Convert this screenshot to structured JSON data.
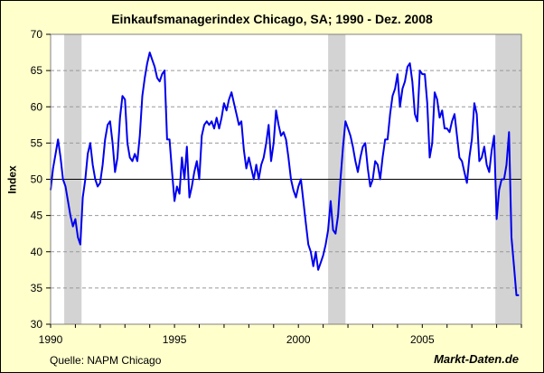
{
  "chart_data": {
    "type": "line",
    "title": "Einkaufsmanagerindex Chicago, SA; 1990 - Dez. 2008",
    "ylabel": "Index",
    "xlabel": "",
    "xlim": [
      1990,
      2009
    ],
    "ylim": [
      30,
      70
    ],
    "yticks": [
      30,
      35,
      40,
      45,
      50,
      55,
      60,
      65,
      70
    ],
    "xticks": [
      1990,
      1995,
      2000,
      2005
    ],
    "grid": true,
    "reference_line": 50,
    "recessions": [
      [
        1990.55,
        1991.25
      ],
      [
        2001.2,
        2001.9
      ],
      [
        2007.95,
        2009.0
      ]
    ],
    "colors": {
      "line": "#0000EE",
      "recession": "#D3D3D3",
      "plot_bg": "#FFFFFF",
      "grid": "#999999"
    },
    "series": [
      {
        "x": [
          1990.0,
          1990.1,
          1990.2,
          1990.3,
          1990.4,
          1990.5,
          1990.6,
          1990.7,
          1990.8,
          1990.9,
          1991.0,
          1991.1,
          1991.2,
          1991.3,
          1991.4,
          1991.5,
          1991.6,
          1991.7,
          1991.8,
          1991.9,
          1992.0,
          1992.1,
          1992.2,
          1992.3,
          1992.4,
          1992.5,
          1992.6,
          1992.7,
          1992.8,
          1992.9,
          1993.0,
          1993.1,
          1993.2,
          1993.3,
          1993.4,
          1993.5,
          1993.6,
          1993.7,
          1993.8,
          1993.9,
          1994.0,
          1994.1,
          1994.2,
          1994.3,
          1994.4,
          1994.5,
          1994.6,
          1994.7,
          1994.8,
          1994.9,
          1995.0,
          1995.1,
          1995.2,
          1995.3,
          1995.4,
          1995.5,
          1995.6,
          1995.7,
          1995.8,
          1995.9,
          1996.0,
          1996.1,
          1996.2,
          1996.3,
          1996.4,
          1996.5,
          1996.6,
          1996.7,
          1996.8,
          1996.9,
          1997.0,
          1997.1,
          1997.2,
          1997.3,
          1997.4,
          1997.5,
          1997.6,
          1997.7,
          1997.8,
          1997.9,
          1998.0,
          1998.1,
          1998.2,
          1998.3,
          1998.4,
          1998.5,
          1998.6,
          1998.7,
          1998.8,
          1998.9,
          1999.0,
          1999.1,
          1999.2,
          1999.3,
          1999.4,
          1999.5,
          1999.6,
          1999.7,
          1999.8,
          1999.9,
          2000.0,
          2000.1,
          2000.2,
          2000.3,
          2000.4,
          2000.5,
          2000.6,
          2000.7,
          2000.8,
          2000.9,
          2001.0,
          2001.1,
          2001.2,
          2001.3,
          2001.4,
          2001.5,
          2001.6,
          2001.7,
          2001.8,
          2001.9,
          2002.0,
          2002.1,
          2002.2,
          2002.3,
          2002.4,
          2002.5,
          2002.6,
          2002.7,
          2002.8,
          2002.9,
          2003.0,
          2003.1,
          2003.2,
          2003.3,
          2003.4,
          2003.5,
          2003.6,
          2003.7,
          2003.8,
          2003.9,
          2004.0,
          2004.1,
          2004.2,
          2004.3,
          2004.4,
          2004.5,
          2004.6,
          2004.7,
          2004.8,
          2004.9,
          2005.0,
          2005.1,
          2005.2,
          2005.3,
          2005.4,
          2005.5,
          2005.6,
          2005.7,
          2005.8,
          2005.9,
          2006.0,
          2006.1,
          2006.2,
          2006.3,
          2006.4,
          2006.5,
          2006.6,
          2006.7,
          2006.8,
          2006.9,
          2007.0,
          2007.1,
          2007.2,
          2007.3,
          2007.4,
          2007.5,
          2007.6,
          2007.7,
          2007.8,
          2007.9,
          2008.0,
          2008.1,
          2008.2,
          2008.3,
          2008.4,
          2008.5,
          2008.6,
          2008.7,
          2008.8,
          2008.9
        ],
        "values": [
          48.5,
          51.5,
          53.5,
          55.5,
          53.0,
          50.0,
          49.0,
          47.0,
          45.0,
          43.5,
          44.5,
          42.0,
          41.0,
          47.5,
          50.0,
          53.5,
          55.0,
          52.0,
          50.0,
          49.0,
          49.5,
          52.0,
          55.5,
          57.5,
          58.0,
          55.0,
          51.0,
          53.0,
          58.5,
          61.5,
          61.0,
          55.0,
          53.0,
          52.5,
          53.5,
          52.5,
          56.0,
          61.5,
          64.0,
          66.0,
          67.5,
          66.5,
          65.5,
          64.0,
          63.5,
          64.5,
          65.0,
          55.5,
          55.5,
          51.0,
          47.0,
          49.0,
          48.0,
          53.0,
          50.0,
          54.5,
          47.5,
          49.0,
          51.0,
          52.5,
          50.0,
          56.0,
          57.5,
          58.0,
          57.5,
          58.0,
          57.0,
          58.5,
          57.0,
          58.5,
          60.5,
          59.5,
          61.0,
          62.0,
          60.5,
          59.0,
          57.5,
          58.0,
          54.0,
          51.5,
          53.0,
          51.5,
          50.0,
          52.0,
          50.0,
          52.0,
          53.0,
          55.0,
          57.5,
          52.5,
          55.0,
          59.5,
          57.5,
          56.0,
          56.5,
          55.5,
          53.0,
          50.0,
          48.5,
          47.5,
          49.0,
          50.0,
          47.0,
          44.0,
          41.0,
          40.0,
          38.0,
          40.0,
          37.5,
          38.5,
          39.5,
          41.0,
          43.0,
          47.0,
          43.0,
          42.5,
          45.0,
          50.0,
          54.5,
          58.0,
          57.0,
          56.0,
          54.5,
          52.5,
          51.0,
          53.0,
          54.5,
          55.0,
          51.5,
          49.0,
          50.0,
          52.5,
          52.0,
          50.0,
          53.0,
          55.5,
          55.5,
          59.0,
          61.5,
          62.5,
          64.5,
          60.0,
          62.5,
          63.5,
          65.5,
          66.0,
          63.5,
          59.0,
          58.0,
          65.0,
          64.5,
          64.5,
          60.5,
          53.0,
          55.0,
          62.0,
          61.0,
          58.5,
          59.5,
          57.0,
          57.0,
          56.5,
          58.0,
          59.0,
          56.0,
          53.0,
          52.5,
          51.0,
          49.5,
          53.0,
          55.5,
          60.5,
          59.0,
          52.5,
          53.0,
          54.5,
          52.0,
          51.0,
          54.0,
          56.0,
          44.5,
          48.5,
          50.0,
          50.0,
          52.0,
          56.5,
          42.0,
          38.0,
          34.0,
          34.0
        ]
      }
    ],
    "source": "Quelle: NAPM Chicago",
    "brand": "Markt-Daten.de"
  }
}
